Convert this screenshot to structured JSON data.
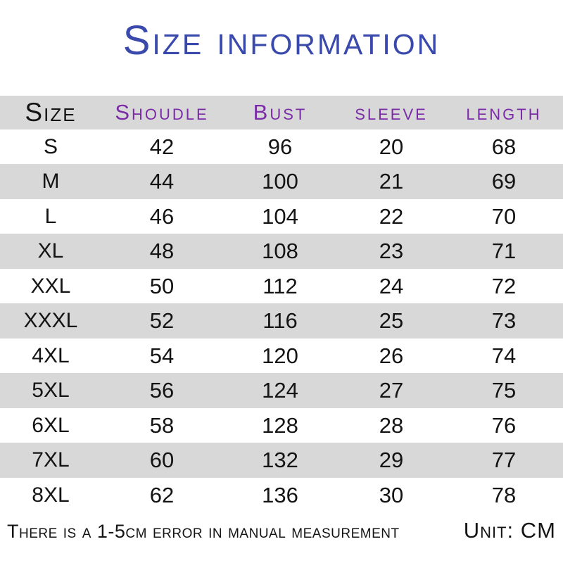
{
  "title": "Size information",
  "table": {
    "columns": [
      "Size",
      "Shoudle",
      "Bust",
      "sleeve",
      "length"
    ],
    "rows": [
      [
        "S",
        "42",
        "96",
        "20",
        "68"
      ],
      [
        "M",
        "44",
        "100",
        "21",
        "69"
      ],
      [
        "L",
        "46",
        "104",
        "22",
        "70"
      ],
      [
        "XL",
        "48",
        "108",
        "23",
        "71"
      ],
      [
        "XXL",
        "50",
        "112",
        "24",
        "72"
      ],
      [
        "XXXL",
        "52",
        "116",
        "25",
        "73"
      ],
      [
        "4XL",
        "54",
        "120",
        "26",
        "74"
      ],
      [
        "5XL",
        "56",
        "124",
        "27",
        "75"
      ],
      [
        "6XL",
        "58",
        "128",
        "28",
        "76"
      ],
      [
        "7XL",
        "60",
        "132",
        "29",
        "77"
      ],
      [
        "8XL",
        "62",
        "136",
        "30",
        "78"
      ]
    ]
  },
  "footer": {
    "note": "There is a 1-5cm error in manual measurement",
    "unit": "Unit: CM"
  },
  "colors": {
    "title": "#3a49ac",
    "header_text": "#7b2aa8",
    "band": "#d8d8d8",
    "text": "#141414"
  }
}
